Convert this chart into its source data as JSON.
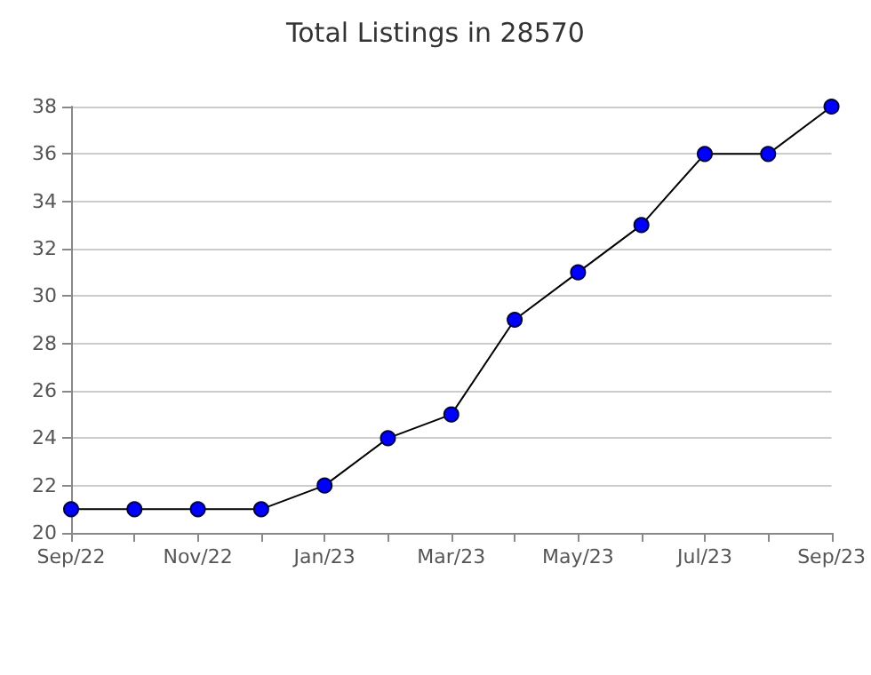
{
  "chart_data": {
    "type": "line",
    "title": "Total Listings in 28570",
    "categories": [
      "Sep/22",
      null,
      "Nov/22",
      null,
      "Jan/23",
      null,
      "Mar/23",
      null,
      "May/23",
      null,
      "Jul/23",
      null,
      "Sep/23"
    ],
    "series": [
      {
        "color": "#0000ff",
        "values": [
          21,
          21,
          21,
          21,
          22,
          24,
          25,
          29,
          31,
          33,
          36,
          36,
          38
        ]
      }
    ],
    "ylim": [
      20,
      38
    ],
    "yticks": [
      20,
      22,
      24,
      26,
      28,
      30,
      32,
      34,
      36,
      38
    ],
    "grid": "y",
    "marker": "circle",
    "line_style": "solid"
  }
}
